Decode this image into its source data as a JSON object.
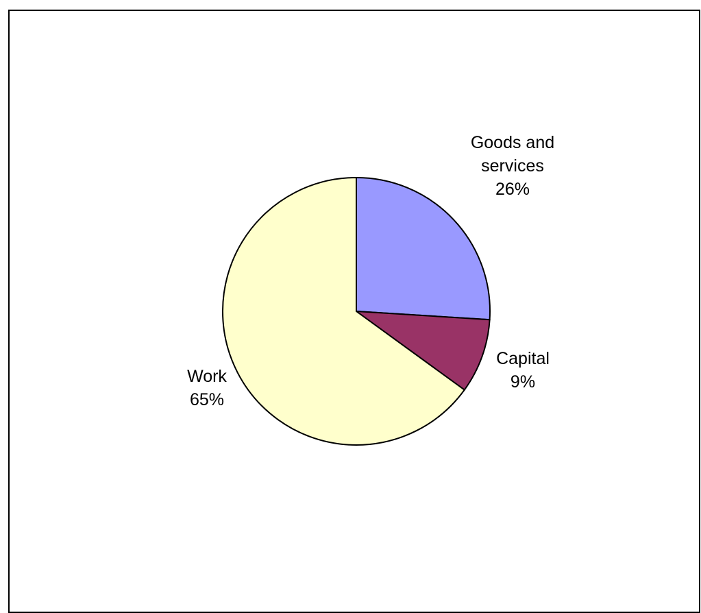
{
  "chart_data": {
    "type": "pie",
    "start": "12 o'clock",
    "direction": "clockwise",
    "slices": [
      {
        "label_lines": [
          "Goods and",
          "services"
        ],
        "percent_label": "26%",
        "value": 26,
        "color": "#9999ff"
      },
      {
        "label_lines": [
          "Capital"
        ],
        "percent_label": "9%",
        "value": 9,
        "color": "#993366"
      },
      {
        "label_lines": [
          "Work"
        ],
        "percent_label": "65%",
        "value": 65,
        "color": "#ffffcc"
      }
    ]
  }
}
